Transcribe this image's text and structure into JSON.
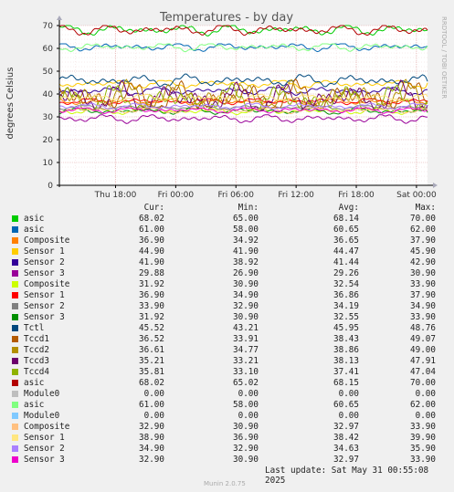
{
  "chart_data": {
    "type": "line",
    "title": "Temperatures - by day",
    "ylabel": "degrees Celsius",
    "side_label": "RRDTOOL / TOBI OETIKER",
    "ylim": [
      0,
      70
    ],
    "y_ticks": [
      "0",
      "10",
      "20",
      "30",
      "40",
      "50",
      "60",
      "70"
    ],
    "x_ticks": [
      "Thu 18:00",
      "Fri 00:00",
      "Fri 06:00",
      "Fri 12:00",
      "Fri 18:00",
      "Sat 00:00"
    ],
    "x_tick_hours": [
      6,
      12,
      18,
      24,
      30,
      36
    ],
    "x_range_hours": [
      0.4,
      37.1
    ],
    "grid": true,
    "legend_headers": [
      "Cur:",
      "Min:",
      "Avg:",
      "Max:"
    ],
    "series": [
      {
        "name": "asic",
        "color": "#00cc00",
        "cur": "68.02",
        "min": "65.00",
        "avg": "68.14",
        "max": "70.00"
      },
      {
        "name": "asic",
        "color": "#0066b3",
        "cur": "61.00",
        "min": "58.00",
        "avg": "60.65",
        "max": "62.00"
      },
      {
        "name": "Composite",
        "color": "#ff8000",
        "cur": "36.90",
        "min": "34.92",
        "avg": "36.65",
        "max": "37.90"
      },
      {
        "name": "Sensor 1",
        "color": "#ffcc00",
        "cur": "44.90",
        "min": "41.90",
        "avg": "44.47",
        "max": "45.90"
      },
      {
        "name": "Sensor 2",
        "color": "#330099",
        "cur": "41.90",
        "min": "38.92",
        "avg": "41.44",
        "max": "42.90"
      },
      {
        "name": "Sensor 3",
        "color": "#990099",
        "cur": "29.88",
        "min": "26.90",
        "avg": "29.26",
        "max": "30.90"
      },
      {
        "name": "Composite",
        "color": "#ccff00",
        "cur": "31.92",
        "min": "30.90",
        "avg": "32.54",
        "max": "33.90"
      },
      {
        "name": "Sensor 1",
        "color": "#ff0000",
        "cur": "36.90",
        "min": "34.90",
        "avg": "36.86",
        "max": "37.90"
      },
      {
        "name": "Sensor 2",
        "color": "#808080",
        "cur": "33.90",
        "min": "32.90",
        "avg": "34.19",
        "max": "34.90"
      },
      {
        "name": "Sensor 3",
        "color": "#008f00",
        "cur": "31.92",
        "min": "30.90",
        "avg": "32.55",
        "max": "33.90"
      },
      {
        "name": "Tctl",
        "color": "#00487d",
        "cur": "45.52",
        "min": "43.21",
        "avg": "45.95",
        "max": "48.76"
      },
      {
        "name": "Tccd1",
        "color": "#b35a00",
        "cur": "36.52",
        "min": "33.91",
        "avg": "38.43",
        "max": "49.07"
      },
      {
        "name": "Tccd2",
        "color": "#b38f00",
        "cur": "36.61",
        "min": "34.77",
        "avg": "38.86",
        "max": "49.00"
      },
      {
        "name": "Tccd3",
        "color": "#6b006b",
        "cur": "35.21",
        "min": "33.21",
        "avg": "38.13",
        "max": "47.91"
      },
      {
        "name": "Tccd4",
        "color": "#8fb300",
        "cur": "35.81",
        "min": "33.10",
        "avg": "37.41",
        "max": "47.04"
      },
      {
        "name": "asic",
        "color": "#b30000",
        "cur": "68.02",
        "min": "65.02",
        "avg": "68.15",
        "max": "70.00"
      },
      {
        "name": "Module0",
        "color": "#bebebe",
        "cur": "0.00",
        "min": "0.00",
        "avg": "0.00",
        "max": "0.00"
      },
      {
        "name": "asic",
        "color": "#80ff80",
        "cur": "61.00",
        "min": "58.00",
        "avg": "60.65",
        "max": "62.00"
      },
      {
        "name": "Module0",
        "color": "#80c9ff",
        "cur": "0.00",
        "min": "0.00",
        "avg": "0.00",
        "max": "0.00"
      },
      {
        "name": "Composite",
        "color": "#ffc080",
        "cur": "32.90",
        "min": "30.90",
        "avg": "32.97",
        "max": "33.90"
      },
      {
        "name": "Sensor 1",
        "color": "#ffe680",
        "cur": "38.90",
        "min": "36.90",
        "avg": "38.42",
        "max": "39.90"
      },
      {
        "name": "Sensor 2",
        "color": "#aa80ff",
        "cur": "34.90",
        "min": "32.90",
        "avg": "34.63",
        "max": "35.90"
      },
      {
        "name": "Sensor 3",
        "color": "#ee00cc",
        "cur": "32.90",
        "min": "30.90",
        "avg": "32.97",
        "max": "33.90"
      }
    ]
  },
  "footer": {
    "last_update": "Last update: Sat May 31 00:55:08 2025",
    "version": "Munin 2.0.75"
  }
}
